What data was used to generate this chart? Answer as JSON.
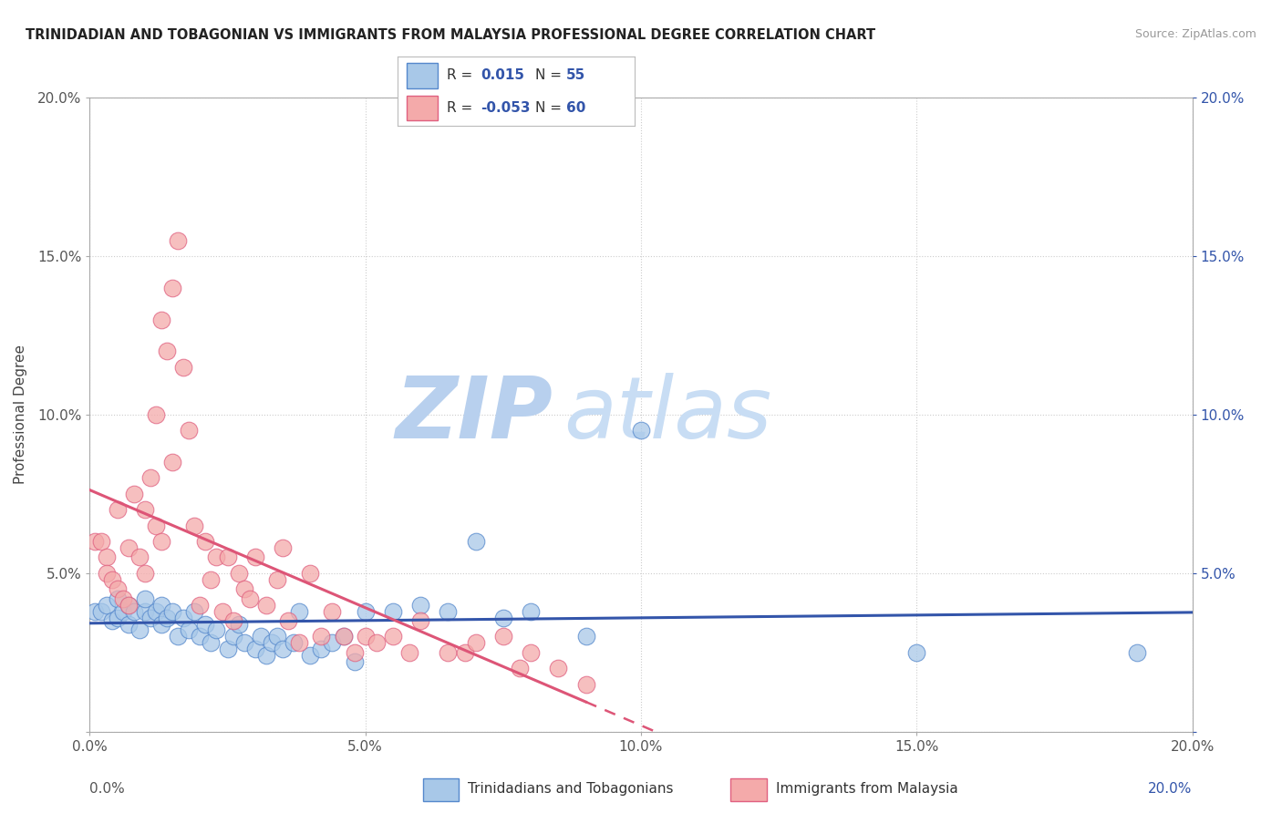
{
  "title": "TRINIDADIAN AND TOBAGONIAN VS IMMIGRANTS FROM MALAYSIA PROFESSIONAL DEGREE CORRELATION CHART",
  "source": "Source: ZipAtlas.com",
  "ylabel": "Professional Degree",
  "legend_blue_r": "0.015",
  "legend_blue_n": "55",
  "legend_pink_r": "-0.053",
  "legend_pink_n": "60",
  "legend_blue_label": "Trinidadians and Tobagonians",
  "legend_pink_label": "Immigrants from Malaysia",
  "blue_scatter_color": "#A8C8E8",
  "blue_edge_color": "#5588CC",
  "pink_scatter_color": "#F4AAAA",
  "pink_edge_color": "#E06080",
  "blue_line_color": "#3355AA",
  "pink_line_color": "#DD5577",
  "label_color": "#3355AA",
  "grid_color": "#CCCCCC",
  "watermark_color": "#DDEEFF",
  "blue_x": [
    0.001,
    0.002,
    0.003,
    0.004,
    0.005,
    0.005,
    0.006,
    0.007,
    0.007,
    0.008,
    0.009,
    0.01,
    0.01,
    0.011,
    0.012,
    0.013,
    0.013,
    0.014,
    0.015,
    0.016,
    0.017,
    0.018,
    0.019,
    0.02,
    0.021,
    0.022,
    0.023,
    0.025,
    0.026,
    0.027,
    0.028,
    0.03,
    0.031,
    0.032,
    0.033,
    0.034,
    0.035,
    0.037,
    0.038,
    0.04,
    0.042,
    0.044,
    0.046,
    0.048,
    0.05,
    0.055,
    0.06,
    0.065,
    0.07,
    0.075,
    0.08,
    0.09,
    0.1,
    0.15,
    0.19
  ],
  "blue_y": [
    0.038,
    0.038,
    0.04,
    0.035,
    0.042,
    0.036,
    0.038,
    0.04,
    0.034,
    0.038,
    0.032,
    0.038,
    0.042,
    0.036,
    0.038,
    0.034,
    0.04,
    0.036,
    0.038,
    0.03,
    0.036,
    0.032,
    0.038,
    0.03,
    0.034,
    0.028,
    0.032,
    0.026,
    0.03,
    0.034,
    0.028,
    0.026,
    0.03,
    0.024,
    0.028,
    0.03,
    0.026,
    0.028,
    0.038,
    0.024,
    0.026,
    0.028,
    0.03,
    0.022,
    0.038,
    0.038,
    0.04,
    0.038,
    0.06,
    0.036,
    0.038,
    0.03,
    0.095,
    0.025,
    0.025
  ],
  "pink_x": [
    0.001,
    0.002,
    0.003,
    0.003,
    0.004,
    0.005,
    0.005,
    0.006,
    0.007,
    0.007,
    0.008,
    0.009,
    0.01,
    0.01,
    0.011,
    0.012,
    0.012,
    0.013,
    0.013,
    0.014,
    0.015,
    0.015,
    0.016,
    0.017,
    0.018,
    0.019,
    0.02,
    0.021,
    0.022,
    0.023,
    0.024,
    0.025,
    0.026,
    0.027,
    0.028,
    0.029,
    0.03,
    0.032,
    0.034,
    0.035,
    0.036,
    0.038,
    0.04,
    0.042,
    0.044,
    0.046,
    0.048,
    0.05,
    0.052,
    0.055,
    0.058,
    0.06,
    0.065,
    0.068,
    0.07,
    0.075,
    0.078,
    0.08,
    0.085,
    0.09
  ],
  "pink_y": [
    0.06,
    0.06,
    0.055,
    0.05,
    0.048,
    0.045,
    0.07,
    0.042,
    0.058,
    0.04,
    0.075,
    0.055,
    0.07,
    0.05,
    0.08,
    0.065,
    0.1,
    0.06,
    0.13,
    0.12,
    0.14,
    0.085,
    0.155,
    0.115,
    0.095,
    0.065,
    0.04,
    0.06,
    0.048,
    0.055,
    0.038,
    0.055,
    0.035,
    0.05,
    0.045,
    0.042,
    0.055,
    0.04,
    0.048,
    0.058,
    0.035,
    0.028,
    0.05,
    0.03,
    0.038,
    0.03,
    0.025,
    0.03,
    0.028,
    0.03,
    0.025,
    0.035,
    0.025,
    0.025,
    0.028,
    0.03,
    0.02,
    0.025,
    0.02,
    0.015
  ],
  "xlim": [
    0.0,
    0.2
  ],
  "ylim": [
    0.0,
    0.2
  ],
  "xtick_vals": [
    0.0,
    0.05,
    0.1,
    0.15,
    0.2
  ],
  "ytick_vals": [
    0.0,
    0.05,
    0.1,
    0.15,
    0.2
  ]
}
